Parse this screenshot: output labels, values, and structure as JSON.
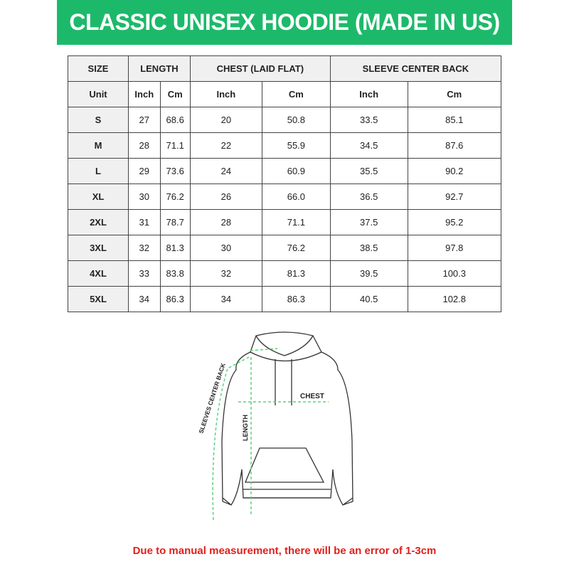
{
  "title": "CLASSIC UNISEX HOODIE (MADE IN US)",
  "colors": {
    "banner": "#1db96b",
    "note": "#e0201c",
    "measure_line": "#5fd17f"
  },
  "table": {
    "headers": [
      "SIZE",
      "LENGTH",
      "CHEST (LAID FLAT)",
      "SLEEVE CENTER BACK"
    ],
    "unit_label": "Unit",
    "units": [
      "Inch",
      "Cm",
      "Inch",
      "Cm",
      "Inch",
      "Cm"
    ],
    "rows": [
      {
        "size": "S",
        "values": [
          "27",
          "68.6",
          "20",
          "50.8",
          "33.5",
          "85.1"
        ]
      },
      {
        "size": "M",
        "values": [
          "28",
          "71.1",
          "22",
          "55.9",
          "34.5",
          "87.6"
        ]
      },
      {
        "size": "L",
        "values": [
          "29",
          "73.6",
          "24",
          "60.9",
          "35.5",
          "90.2"
        ]
      },
      {
        "size": "XL",
        "values": [
          "30",
          "76.2",
          "26",
          "66.0",
          "36.5",
          "92.7"
        ]
      },
      {
        "size": "2XL",
        "values": [
          "31",
          "78.7",
          "28",
          "71.1",
          "37.5",
          "95.2"
        ]
      },
      {
        "size": "3XL",
        "values": [
          "32",
          "81.3",
          "30",
          "76.2",
          "38.5",
          "97.8"
        ]
      },
      {
        "size": "4XL",
        "values": [
          "33",
          "83.8",
          "32",
          "81.3",
          "39.5",
          "100.3"
        ]
      },
      {
        "size": "5XL",
        "values": [
          "34",
          "86.3",
          "34",
          "86.3",
          "40.5",
          "102.8"
        ]
      }
    ]
  },
  "diagram": {
    "chest": "CHEST",
    "length": "LENGTH",
    "sleeve": "SLEEVES CENTER BACK"
  },
  "note": "Due to manual measurement, there will be an error of 1-3cm"
}
